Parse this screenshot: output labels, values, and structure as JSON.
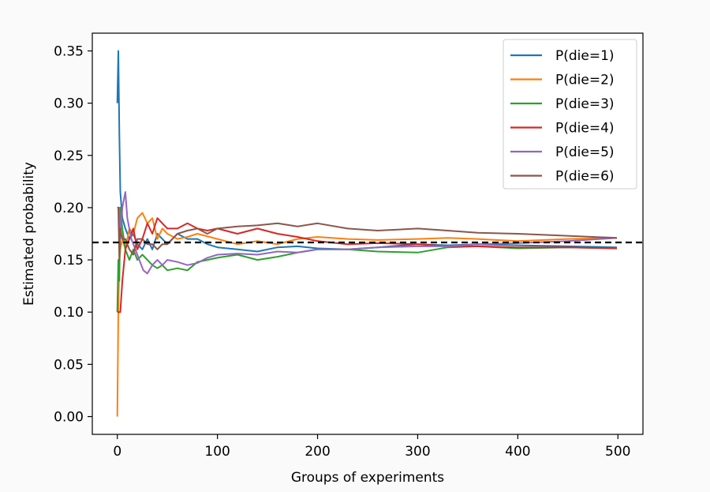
{
  "chart_data": {
    "type": "line",
    "title": "",
    "xlabel": "Groups of experiments",
    "ylabel": "Estimated probability",
    "xlim": [
      -25,
      525
    ],
    "ylim": [
      -0.017,
      0.367
    ],
    "xticks": [
      0,
      100,
      200,
      300,
      400,
      500
    ],
    "xtick_labels": [
      "0",
      "100",
      "200",
      "300",
      "400",
      "500"
    ],
    "yticks": [
      0.0,
      0.05,
      0.1,
      0.15,
      0.2,
      0.25,
      0.3,
      0.35
    ],
    "ytick_labels": [
      "0.00",
      "0.05",
      "0.10",
      "0.15",
      "0.20",
      "0.25",
      "0.30",
      "0.35"
    ],
    "grid": false,
    "legend_position": "top-right",
    "reference_line": {
      "y": 0.1667,
      "style": "dashed",
      "color": "#000000"
    },
    "series": [
      {
        "name": "P(die=1)",
        "color": "#1f77b4",
        "x": [
          0,
          1,
          2,
          3,
          5,
          8,
          12,
          16,
          20,
          25,
          30,
          35,
          40,
          45,
          50,
          60,
          70,
          80,
          90,
          100,
          120,
          140,
          160,
          180,
          200,
          230,
          260,
          300,
          330,
          360,
          400,
          450,
          499
        ],
        "y": [
          0.3,
          0.35,
          0.27,
          0.215,
          0.19,
          0.18,
          0.17,
          0.175,
          0.165,
          0.16,
          0.17,
          0.16,
          0.175,
          0.17,
          0.165,
          0.175,
          0.17,
          0.17,
          0.165,
          0.162,
          0.16,
          0.158,
          0.162,
          0.163,
          0.161,
          0.16,
          0.162,
          0.165,
          0.164,
          0.165,
          0.164,
          0.163,
          0.162
        ]
      },
      {
        "name": "P(die=2)",
        "color": "#ff7f0e",
        "x": [
          0,
          1,
          2,
          3,
          5,
          8,
          12,
          16,
          20,
          25,
          30,
          35,
          40,
          45,
          50,
          60,
          70,
          80,
          100,
          120,
          140,
          160,
          180,
          200,
          230,
          260,
          300,
          330,
          360,
          400,
          450,
          499
        ],
        "y": [
          0.0,
          0.1,
          0.15,
          0.16,
          0.17,
          0.16,
          0.18,
          0.175,
          0.19,
          0.195,
          0.185,
          0.19,
          0.17,
          0.18,
          0.175,
          0.17,
          0.172,
          0.175,
          0.17,
          0.165,
          0.168,
          0.165,
          0.17,
          0.172,
          0.17,
          0.169,
          0.17,
          0.171,
          0.17,
          0.168,
          0.17,
          0.171
        ]
      },
      {
        "name": "P(die=3)",
        "color": "#2ca02c",
        "x": [
          0,
          1,
          2,
          3,
          5,
          8,
          12,
          16,
          20,
          25,
          30,
          35,
          40,
          45,
          50,
          60,
          70,
          80,
          90,
          100,
          120,
          140,
          160,
          180,
          200,
          230,
          260,
          300,
          330,
          360,
          400,
          450,
          499
        ],
        "y": [
          0.1,
          0.15,
          0.13,
          0.2,
          0.18,
          0.16,
          0.15,
          0.16,
          0.15,
          0.155,
          0.15,
          0.145,
          0.142,
          0.145,
          0.14,
          0.142,
          0.14,
          0.148,
          0.15,
          0.152,
          0.155,
          0.15,
          0.153,
          0.157,
          0.16,
          0.16,
          0.158,
          0.157,
          0.162,
          0.163,
          0.161,
          0.162,
          0.161
        ]
      },
      {
        "name": "P(die=4)",
        "color": "#d62728",
        "x": [
          0,
          1,
          2,
          3,
          5,
          8,
          12,
          16,
          20,
          25,
          30,
          35,
          40,
          45,
          50,
          60,
          70,
          80,
          90,
          100,
          120,
          140,
          160,
          180,
          200,
          230,
          260,
          300,
          330,
          360,
          400,
          450,
          499
        ],
        "y": [
          0.1,
          0.1,
          0.1,
          0.1,
          0.13,
          0.16,
          0.17,
          0.18,
          0.16,
          0.17,
          0.185,
          0.175,
          0.19,
          0.185,
          0.18,
          0.18,
          0.185,
          0.18,
          0.178,
          0.18,
          0.175,
          0.18,
          0.175,
          0.172,
          0.168,
          0.165,
          0.166,
          0.165,
          0.163,
          0.163,
          0.162,
          0.162,
          0.161
        ]
      },
      {
        "name": "P(die=5)",
        "color": "#9467bd",
        "x": [
          0,
          1,
          2,
          3,
          5,
          8,
          10,
          14,
          18,
          22,
          26,
          30,
          35,
          40,
          45,
          50,
          60,
          70,
          80,
          90,
          100,
          120,
          140,
          160,
          180,
          200,
          230,
          260,
          300,
          330,
          360,
          400,
          450,
          499
        ],
        "y": [
          0.2,
          0.2,
          0.2,
          0.17,
          0.2,
          0.215,
          0.19,
          0.17,
          0.16,
          0.15,
          0.14,
          0.137,
          0.145,
          0.15,
          0.145,
          0.15,
          0.148,
          0.145,
          0.147,
          0.152,
          0.155,
          0.156,
          0.155,
          0.158,
          0.157,
          0.16,
          0.16,
          0.162,
          0.163,
          0.163,
          0.165,
          0.166,
          0.168,
          0.171
        ]
      },
      {
        "name": "P(die=6)",
        "color": "#8c564b",
        "x": [
          0,
          1,
          2,
          3,
          5,
          8,
          12,
          16,
          20,
          25,
          30,
          35,
          40,
          45,
          50,
          60,
          70,
          80,
          90,
          100,
          120,
          140,
          160,
          180,
          200,
          230,
          260,
          300,
          330,
          360,
          400,
          450,
          499
        ],
        "y": [
          0.2,
          0.2,
          0.15,
          0.18,
          0.17,
          0.17,
          0.16,
          0.155,
          0.17,
          0.17,
          0.165,
          0.165,
          0.16,
          0.165,
          0.165,
          0.175,
          0.178,
          0.18,
          0.175,
          0.18,
          0.182,
          0.183,
          0.185,
          0.182,
          0.185,
          0.18,
          0.178,
          0.18,
          0.178,
          0.176,
          0.175,
          0.173,
          0.171
        ]
      }
    ]
  }
}
